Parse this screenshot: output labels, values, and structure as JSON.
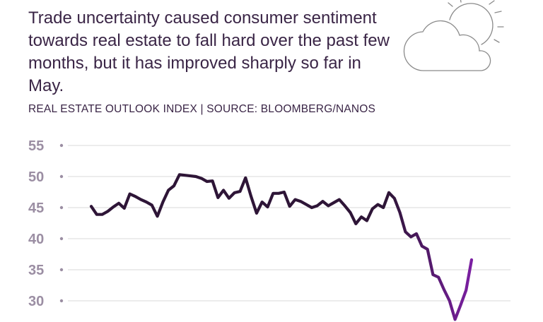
{
  "headline": "Trade uncertainty caused consumer sentiment towards real estate to fall hard over the past few months, but it has improved sharply so far in May.",
  "subtitle": "REAL ESTATE OUTLOOK INDEX | SOURCE: BLOOMBERG/NANOS",
  "icon": "sun-behind-cloud-icon",
  "colors": {
    "line_main": "#2e1537",
    "line_recent": "#7b1fa2",
    "grid": "#d9d9d9",
    "tick_text": "#9b8ea3",
    "text": "#3a2546"
  },
  "chart_data": {
    "type": "line",
    "title": "REAL ESTATE OUTLOOK INDEX",
    "source": "BLOOMBERG/NANOS",
    "xlabel": "",
    "ylabel": "",
    "ylim": [
      27,
      55
    ],
    "yticks": [
      55,
      50,
      45,
      40,
      35,
      30
    ],
    "grid": true,
    "highlight_from_index": 54,
    "values": [
      45.2,
      43.9,
      43.9,
      44.4,
      45.1,
      45.7,
      44.9,
      47.2,
      46.8,
      46.3,
      45.9,
      45.4,
      43.6,
      45.9,
      47.8,
      48.5,
      50.3,
      50.2,
      50.1,
      50.0,
      49.7,
      49.2,
      49.3,
      46.6,
      47.8,
      46.5,
      47.4,
      47.6,
      49.8,
      46.8,
      44.1,
      45.9,
      45.1,
      47.3,
      47.3,
      47.5,
      45.2,
      46.3,
      46.0,
      45.5,
      45.0,
      45.3,
      46.0,
      45.3,
      45.8,
      46.3,
      45.3,
      44.2,
      42.4,
      43.5,
      42.9,
      44.8,
      45.5,
      45.0,
      47.4,
      46.5,
      44.2,
      41.1,
      40.3,
      40.8,
      38.8,
      38.3,
      34.2,
      33.8,
      31.8,
      30.0,
      27.0,
      29.3,
      31.7,
      36.6
    ]
  }
}
